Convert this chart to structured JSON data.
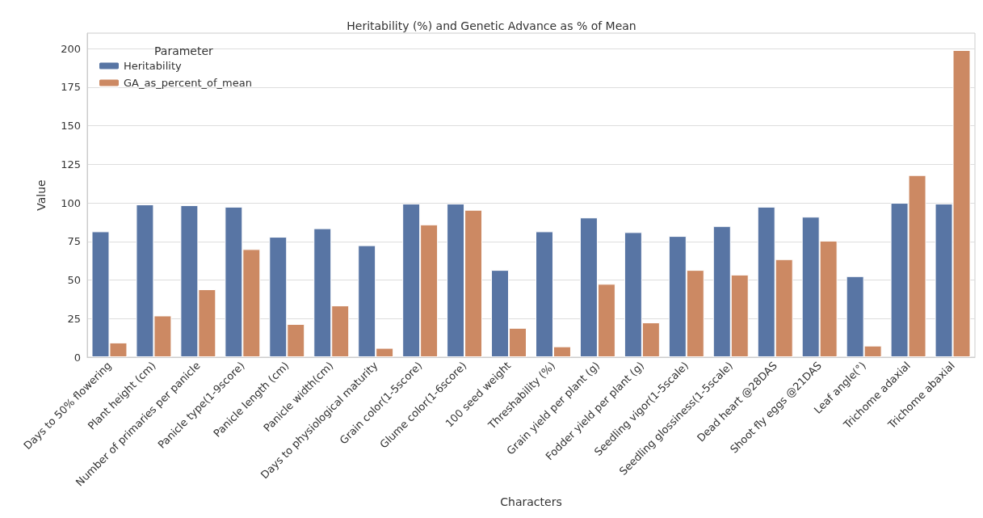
{
  "chart_data": {
    "type": "bar",
    "title": "Heritability (%) and Genetic Advance as % of Mean",
    "xlabel": "Characters",
    "ylabel": "Value",
    "legend_title": "Parameter",
    "legend": "top left",
    "grid": "y",
    "categories": [
      "Days to 50% flowering",
      "Plant height (cm)",
      "Number of primaries per panicle",
      "Panicle type(1-9score)",
      "Panicle length (cm)",
      "Panicle width(cm)",
      "Days to physiological maturity",
      "Grain color(1-5score)",
      "Glume color(1-6score)",
      "100 seed weight",
      "Threshability (%)",
      "Grain yield per plant (g)",
      "Fodder yield per plant (g)",
      "Seedling vigor(1-5scale)",
      "Seedling glossiness(1-5scale)",
      "Dead heart @28DAS",
      "Shoot fly eggs @21DAS",
      "Leaf angle(°)",
      "Trichome adaxial",
      "Trichome abaxial"
    ],
    "series": [
      {
        "name": "Heritability",
        "color": "#5875a4",
        "values": [
          81.5,
          99,
          98.5,
          97.5,
          78,
          83.5,
          72.5,
          99.5,
          99.5,
          56.5,
          81.5,
          90.5,
          81,
          78.5,
          85,
          97.5,
          91,
          52.5,
          100,
          99.5
        ]
      },
      {
        "name": "GA_as_percent_of_mean",
        "color": "#cc8963",
        "values": [
          9.5,
          27,
          44,
          70,
          21.5,
          33.5,
          6,
          86,
          95.5,
          19,
          7,
          47.5,
          22.5,
          56.5,
          53.5,
          63.5,
          75.5,
          7.5,
          118,
          199
        ]
      }
    ],
    "ylim": [
      0,
      210
    ],
    "yticks": [
      0,
      25,
      50,
      75,
      100,
      125,
      150,
      175,
      200
    ]
  }
}
